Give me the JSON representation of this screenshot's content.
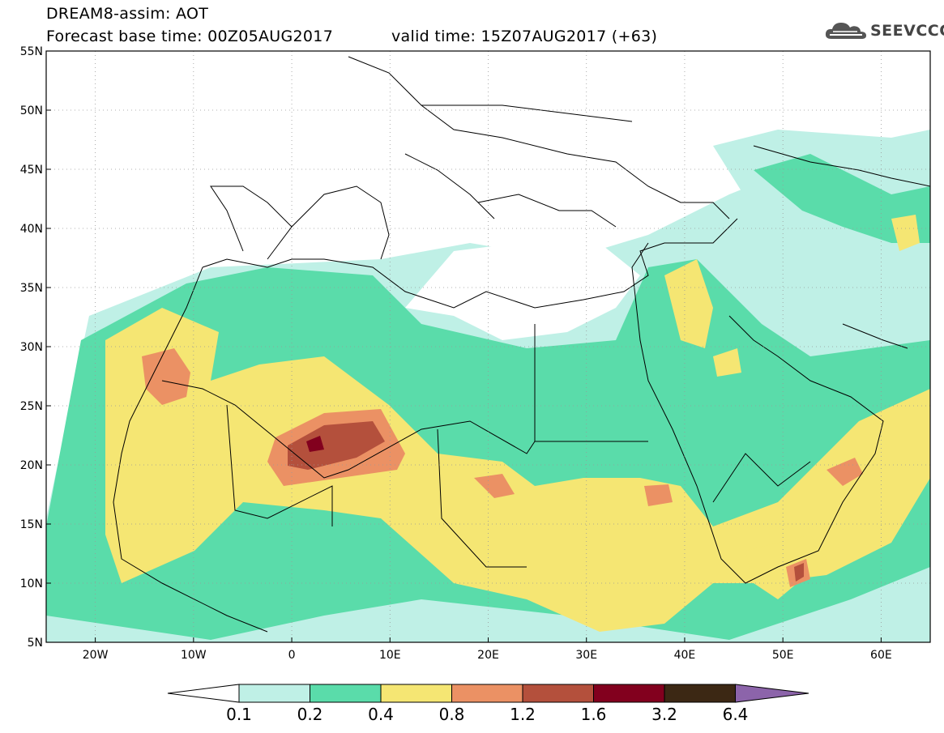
{
  "header": {
    "title": "DREAM8-assim: AOT",
    "base_time": "Forecast base time: 00Z05AUG2017",
    "valid_time": "valid time: 15Z07AUG2017 (+63)"
  },
  "logo": {
    "text": "SEEVCCC",
    "icon": "cloud-icon"
  },
  "map": {
    "lat_labels": [
      "55N",
      "50N",
      "45N",
      "40N",
      "35N",
      "30N",
      "25N",
      "20N",
      "15N",
      "10N",
      "5N"
    ],
    "lon_labels": [
      "20W",
      "10W",
      "0",
      "10E",
      "20E",
      "30E",
      "40E",
      "50E",
      "60E"
    ],
    "extent": {
      "lon_min": -25,
      "lon_max": 65,
      "lat_min": 5,
      "lat_max": 55
    }
  },
  "legend": {
    "labels": [
      "0.1",
      "0.2",
      "0.4",
      "0.8",
      "1.2",
      "1.6",
      "3.2",
      "6.4"
    ],
    "colors": [
      "#ffffff",
      "#bff0e6",
      "#5adcaa",
      "#f5e673",
      "#eb9164",
      "#b4503c",
      "#82001e",
      "#3c2814",
      "#8c64aa"
    ]
  }
}
